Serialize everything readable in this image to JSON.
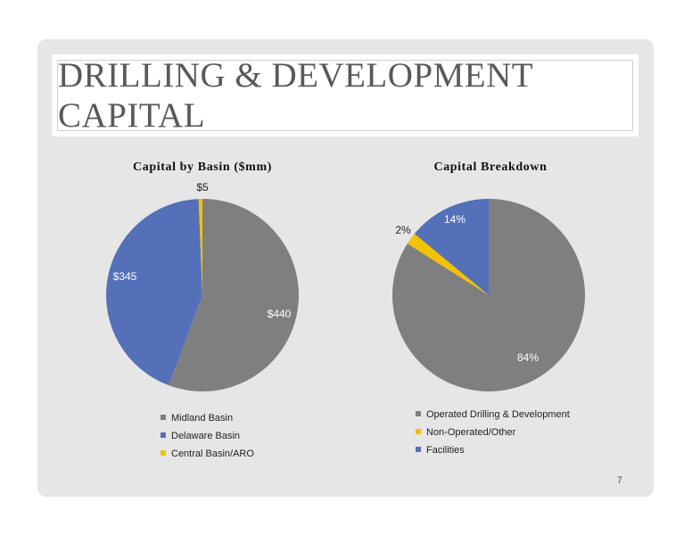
{
  "slide": {
    "title": "DRILLING & DEVELOPMENT CAPITAL",
    "page_number": "7",
    "background_color": "#e6e6e6"
  },
  "chart_data": [
    {
      "type": "pie",
      "title": "Capital by Basin ($mm)",
      "categories": [
        "Midland Basin",
        "Delaware Basin",
        "Central Basin/ARO"
      ],
      "values": [
        440,
        345,
        5
      ],
      "data_labels": [
        "$440",
        "$345",
        "$5"
      ],
      "colors": [
        "#7f7f7f",
        "#5470b8",
        "#f2c200"
      ],
      "label_colors": [
        "#ffffff",
        "#ffffff",
        "#222222"
      ],
      "legend_position": "bottom",
      "start_angle_deg": 0,
      "direction": "clockwise"
    },
    {
      "type": "pie",
      "title": "Capital Breakdown",
      "categories": [
        "Operated Drilling & Development",
        "Non-Operated/Other",
        "Facilities"
      ],
      "values": [
        84,
        2,
        14
      ],
      "data_labels": [
        "84%",
        "2%",
        "14%"
      ],
      "colors": [
        "#7f7f7f",
        "#f2c200",
        "#5470b8"
      ],
      "label_colors": [
        "#ffffff",
        "#222222",
        "#ffffff"
      ],
      "legend_position": "bottom",
      "start_angle_deg": 0,
      "direction": "clockwise"
    }
  ]
}
